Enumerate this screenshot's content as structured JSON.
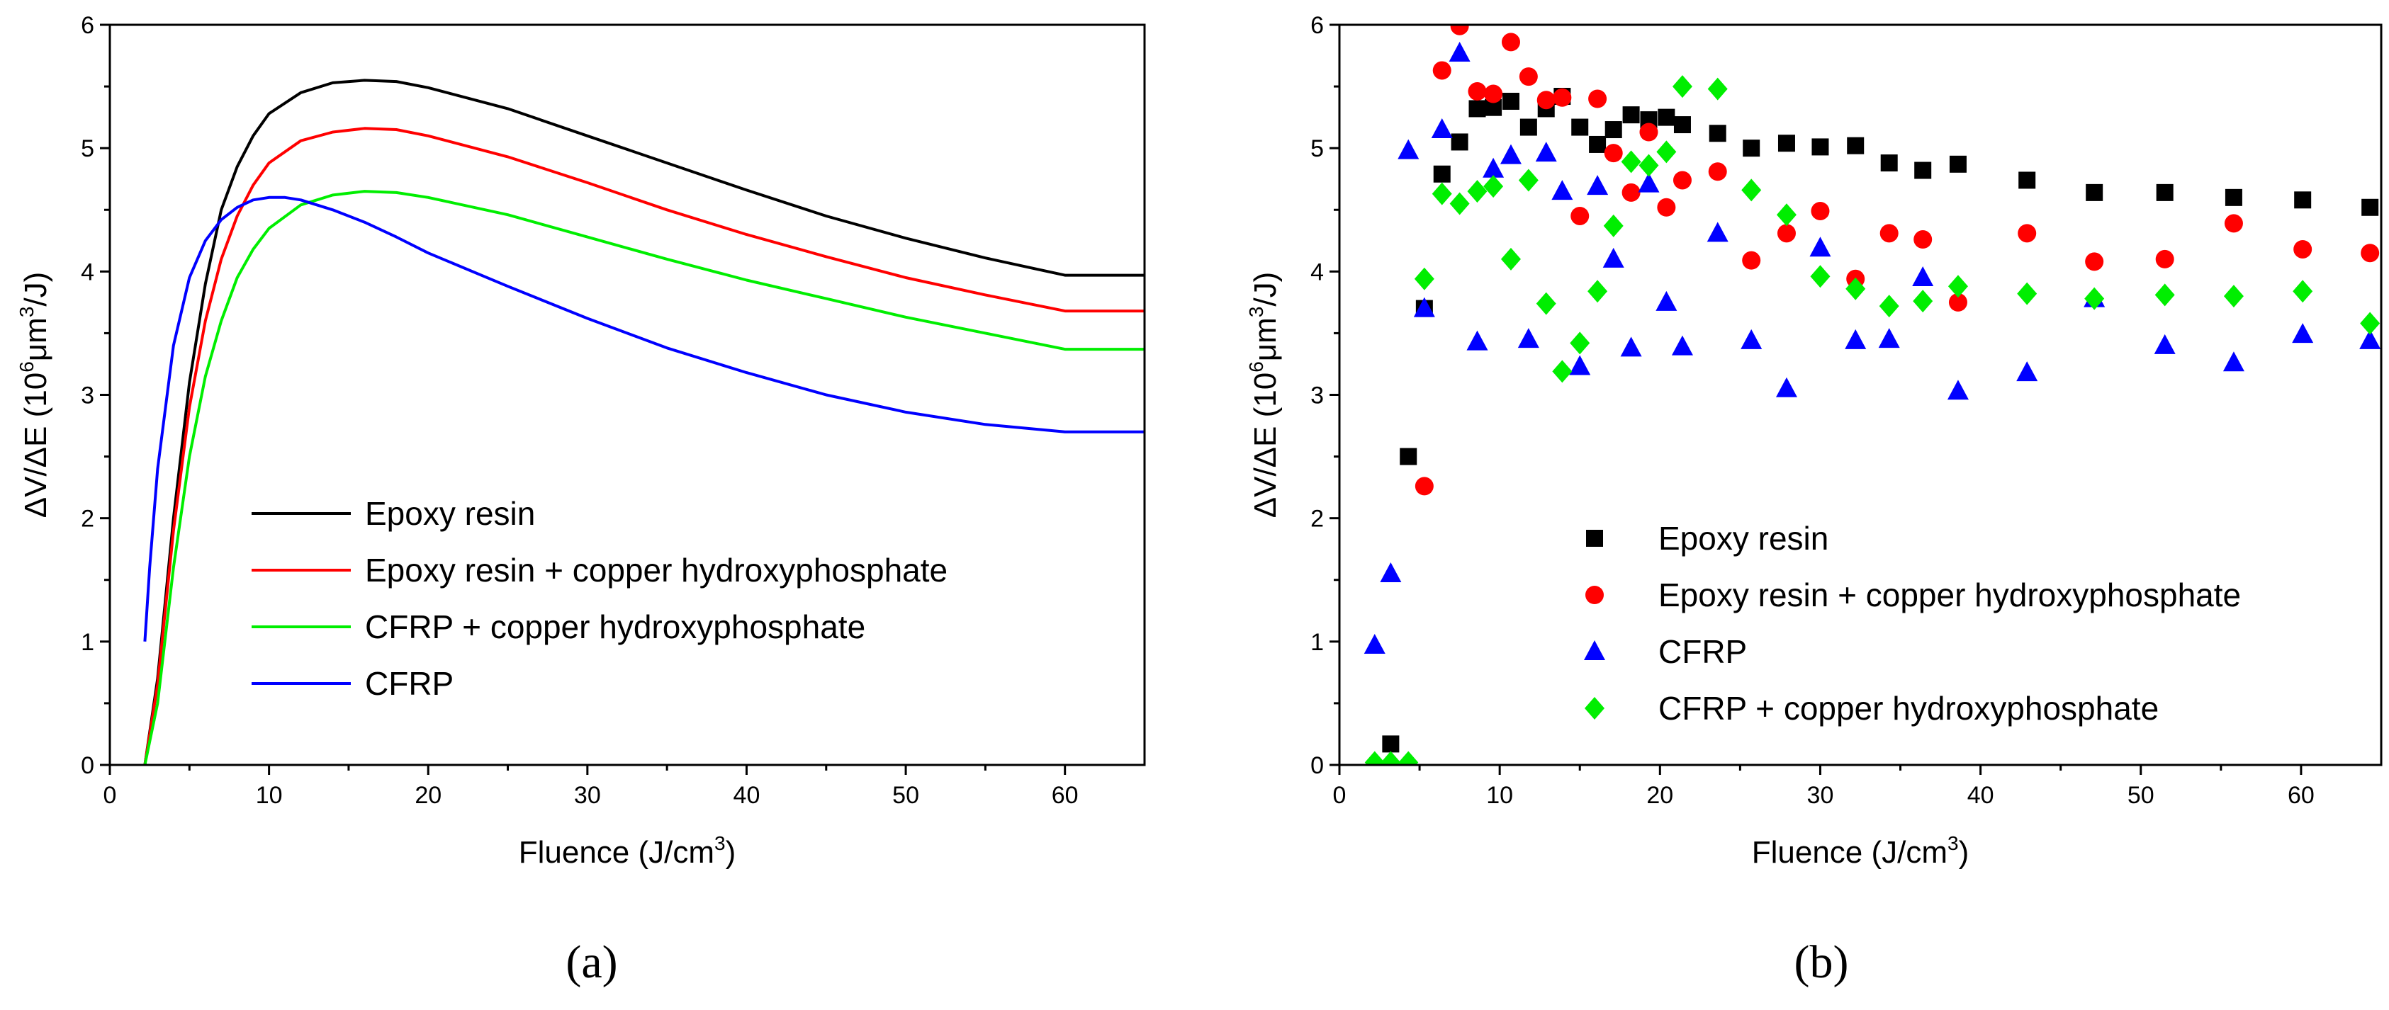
{
  "chart_data": [
    {
      "id": "a",
      "type": "line",
      "panel_label": "(a)",
      "xlabel": {
        "main": "Fluence (J/cm",
        "sup": "3",
        "tail": ")"
      },
      "ylabel": {
        "main": "ΔV/ΔE (10",
        "sup1": "6",
        "mid": "μm",
        "sup2": "3",
        "tail": "/J)"
      },
      "xlim": [
        0,
        65
      ],
      "ylim": [
        0,
        6
      ],
      "xticks": [
        0,
        10,
        20,
        30,
        40,
        50,
        60
      ],
      "yticks": [
        0,
        1,
        2,
        3,
        4,
        5,
        6
      ],
      "legend_position": "lower-center",
      "series": [
        {
          "name": "Epoxy resin",
          "color": "#000000",
          "x": [
            2.2,
            3,
            4,
            5,
            6,
            7,
            8,
            9,
            10,
            12,
            14,
            16,
            18,
            20,
            25,
            30,
            35,
            40,
            45,
            50,
            55,
            60,
            65
          ],
          "y": [
            0,
            0.7,
            2.0,
            3.1,
            3.9,
            4.5,
            4.85,
            5.1,
            5.28,
            5.45,
            5.53,
            5.55,
            5.54,
            5.49,
            5.32,
            5.1,
            4.88,
            4.66,
            4.45,
            4.27,
            4.11,
            3.97,
            3.97
          ]
        },
        {
          "name": "Epoxy resin + copper hydroxyphosphate",
          "color": "#ff0000",
          "x": [
            2.2,
            3,
            4,
            5,
            6,
            7,
            8,
            9,
            10,
            12,
            14,
            16,
            18,
            20,
            25,
            30,
            35,
            40,
            45,
            50,
            55,
            60,
            65
          ],
          "y": [
            0,
            0.65,
            1.9,
            2.9,
            3.6,
            4.1,
            4.45,
            4.7,
            4.88,
            5.06,
            5.13,
            5.16,
            5.15,
            5.1,
            4.93,
            4.72,
            4.5,
            4.3,
            4.12,
            3.95,
            3.81,
            3.68,
            3.68
          ]
        },
        {
          "name": "CFRP + copper hydroxyphosphate",
          "color": "#00ee00",
          "x": [
            2.2,
            3,
            4,
            5,
            6,
            7,
            8,
            9,
            10,
            12,
            14,
            16,
            18,
            20,
            25,
            30,
            35,
            40,
            45,
            50,
            55,
            60,
            65
          ],
          "y": [
            0,
            0.5,
            1.6,
            2.5,
            3.15,
            3.6,
            3.95,
            4.18,
            4.35,
            4.54,
            4.62,
            4.65,
            4.64,
            4.6,
            4.46,
            4.28,
            4.1,
            3.93,
            3.78,
            3.63,
            3.5,
            3.37,
            3.37
          ]
        },
        {
          "name": "CFRP",
          "color": "#0000ff",
          "x": [
            2.2,
            2.5,
            3,
            4,
            5,
            6,
            7,
            8,
            9,
            10,
            11,
            12,
            14,
            16,
            18,
            20,
            25,
            30,
            35,
            40,
            45,
            50,
            55,
            60,
            65
          ],
          "y": [
            1.0,
            1.6,
            2.4,
            3.4,
            3.95,
            4.25,
            4.42,
            4.52,
            4.58,
            4.6,
            4.6,
            4.58,
            4.5,
            4.4,
            4.28,
            4.15,
            3.88,
            3.62,
            3.38,
            3.18,
            3.0,
            2.86,
            2.76,
            2.7,
            2.7
          ]
        }
      ]
    },
    {
      "id": "b",
      "type": "scatter",
      "panel_label": "(b)",
      "xlabel": {
        "main": "Fluence (J/cm",
        "sup": "3",
        "tail": ")"
      },
      "ylabel": {
        "main": "ΔV/ΔE (10",
        "sup1": "6",
        "mid": "μm",
        "sup2": "3",
        "tail": "/J)"
      },
      "xlim": [
        0,
        65
      ],
      "ylim": [
        0,
        6
      ],
      "xticks": [
        0,
        10,
        20,
        30,
        40,
        50,
        60
      ],
      "yticks": [
        0,
        1,
        2,
        3,
        4,
        5,
        6
      ],
      "legend_position": "lower-right",
      "series": [
        {
          "name": "Epoxy resin",
          "color": "#000000",
          "marker": "square",
          "x": [
            3.2,
            4.3,
            5.3,
            6.4,
            7.5,
            8.6,
            9.6,
            10.7,
            11.8,
            12.9,
            13.9,
            15,
            16.1,
            17.1,
            18.2,
            19.3,
            20.4,
            21.4,
            23.6,
            25.7,
            27.9,
            30,
            32.2,
            34.3,
            36.4,
            38.6,
            42.9,
            47.1,
            51.5,
            55.8,
            60.1,
            64.3
          ],
          "y": [
            0.17,
            2.5,
            3.7,
            4.79,
            5.05,
            5.32,
            5.33,
            5.38,
            5.17,
            5.32,
            5.42,
            5.17,
            5.03,
            5.15,
            5.27,
            5.23,
            5.25,
            5.19,
            5.12,
            5.0,
            5.04,
            5.01,
            5.02,
            4.88,
            4.82,
            4.87,
            4.74,
            4.64,
            4.64,
            4.6,
            4.58,
            4.52
          ]
        },
        {
          "name": "Epoxy resin + copper hydroxyphosphate",
          "color": "#ff0000",
          "marker": "circle",
          "x": [
            5.3,
            6.4,
            7.5,
            8.6,
            9.6,
            10.7,
            11.8,
            12.9,
            13.9,
            15,
            16.1,
            17.1,
            18.2,
            19.3,
            20.4,
            21.4,
            23.6,
            25.7,
            27.9,
            30,
            32.2,
            34.3,
            36.4,
            38.6,
            42.9,
            47.1,
            51.5,
            55.8,
            60.1,
            64.3
          ],
          "y": [
            2.26,
            5.63,
            5.99,
            5.46,
            5.44,
            5.86,
            5.58,
            5.39,
            5.41,
            4.45,
            5.4,
            4.96,
            4.64,
            5.13,
            4.52,
            4.74,
            4.81,
            4.09,
            4.31,
            4.49,
            3.94,
            4.31,
            4.26,
            3.75,
            4.31,
            4.08,
            4.1,
            4.39,
            4.18,
            4.15
          ]
        },
        {
          "name": "CFRP",
          "color": "#0000ff",
          "marker": "triangle",
          "x": [
            2.2,
            3.2,
            4.3,
            5.3,
            6.4,
            7.5,
            8.6,
            9.6,
            10.7,
            11.8,
            12.9,
            13.9,
            15,
            16.1,
            17.1,
            18.2,
            19.3,
            20.4,
            21.4,
            23.6,
            25.7,
            27.9,
            30,
            32.2,
            34.3,
            36.4,
            38.6,
            42.9,
            47.1,
            51.5,
            55.8,
            60.1,
            64.3
          ],
          "y": [
            0.97,
            1.55,
            4.98,
            3.7,
            5.15,
            5.77,
            3.43,
            4.83,
            4.94,
            3.45,
            4.96,
            4.65,
            3.23,
            4.69,
            4.1,
            3.38,
            4.71,
            3.75,
            3.39,
            4.31,
            3.44,
            3.05,
            4.19,
            3.44,
            3.45,
            3.95,
            3.03,
            3.18,
            3.78,
            3.4,
            3.26,
            3.49,
            3.44
          ]
        },
        {
          "name": "CFRP + copper hydroxyphosphate",
          "color": "#00ee00",
          "marker": "diamond",
          "x": [
            2.2,
            3.2,
            4.3,
            5.3,
            6.4,
            7.5,
            8.6,
            9.6,
            10.7,
            11.8,
            12.9,
            13.9,
            15,
            16.1,
            17.1,
            18.2,
            19.3,
            20.4,
            21.4,
            23.6,
            25.7,
            27.9,
            30,
            32.2,
            34.3,
            36.4,
            38.6,
            42.9,
            47.1,
            51.5,
            55.8,
            60.1,
            64.3
          ],
          "y": [
            0.02,
            0.02,
            0.02,
            3.94,
            4.63,
            4.55,
            4.65,
            4.69,
            4.1,
            4.74,
            3.74,
            3.19,
            3.42,
            3.84,
            4.37,
            4.89,
            4.86,
            4.97,
            5.5,
            5.48,
            4.66,
            4.46,
            3.96,
            3.86,
            3.72,
            3.76,
            3.88,
            3.82,
            3.78,
            3.81,
            3.8,
            3.84,
            3.58
          ]
        }
      ]
    }
  ]
}
